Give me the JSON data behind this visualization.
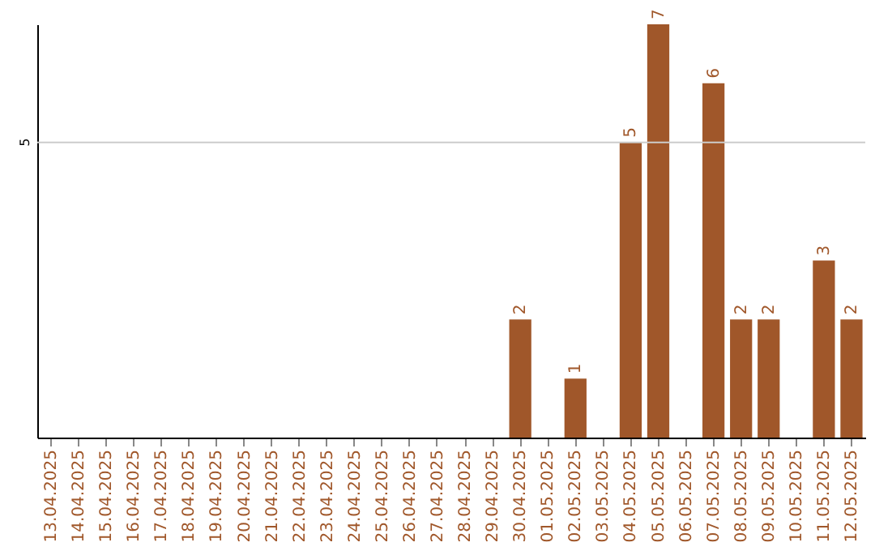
{
  "chart_data": {
    "type": "bar",
    "categories": [
      "13.04.2025",
      "14.04.2025",
      "15.04.2025",
      "16.04.2025",
      "17.04.2025",
      "18.04.2025",
      "19.04.2025",
      "20.04.2025",
      "21.04.2025",
      "22.04.2025",
      "23.04.2025",
      "24.04.2025",
      "25.04.2025",
      "26.04.2025",
      "27.04.2025",
      "28.04.2025",
      "29.04.2025",
      "30.04.2025",
      "01.05.2025",
      "02.05.2025",
      "03.05.2025",
      "04.05.2025",
      "05.05.2025",
      "06.05.2025",
      "07.05.2025",
      "08.05.2025",
      "09.05.2025",
      "10.05.2025",
      "11.05.2025",
      "12.05.2025"
    ],
    "values": [
      null,
      null,
      null,
      null,
      null,
      null,
      null,
      null,
      null,
      null,
      null,
      null,
      null,
      null,
      null,
      null,
      null,
      2,
      null,
      1,
      null,
      5,
      7,
      null,
      6,
      2,
      2,
      null,
      3,
      2
    ],
    "data_labels": true,
    "color": "#a0572a",
    "ylim": [
      0,
      7
    ],
    "ref_lines": [
      {
        "axis": "y",
        "value": 5,
        "label": "5",
        "color": "#cccccc"
      }
    ]
  }
}
